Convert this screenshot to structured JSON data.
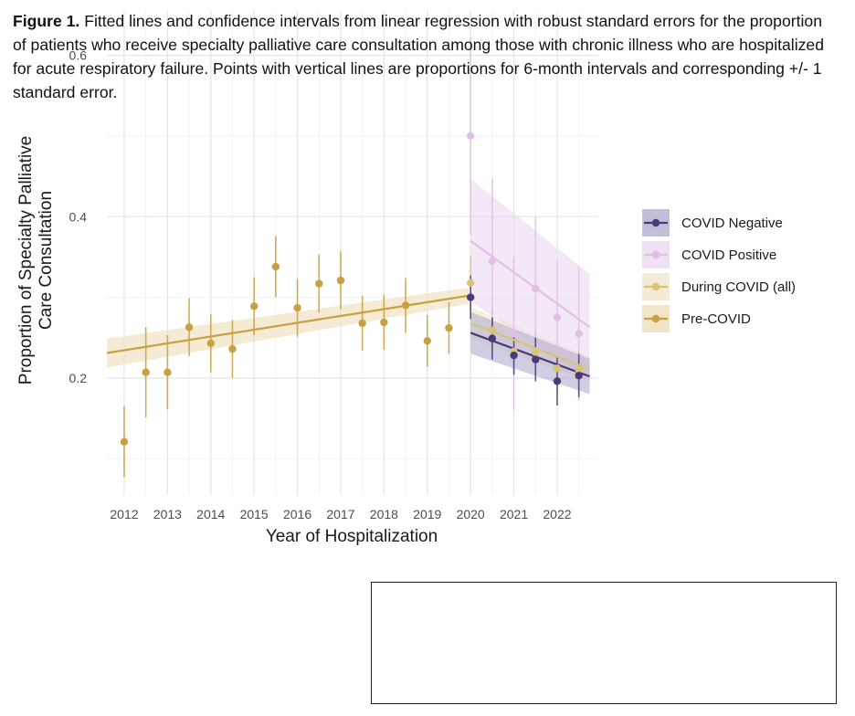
{
  "chart_data": {
    "type": "scatter",
    "xlabel": "Year of Hospitalization",
    "ylabel_line1": "Proportion of Specialty Palliative",
    "ylabel_line2": "Care Consultation",
    "x_tick_labels": [
      "2012",
      "2013",
      "2014",
      "2015",
      "2016",
      "2017",
      "2018",
      "2019",
      "2020",
      "2021",
      "2022"
    ],
    "y_tick_labels": [
      "0.2",
      "0.4",
      "0.6"
    ],
    "xlim": [
      2011.6,
      2022.95
    ],
    "ylim": [
      0.055,
      0.655
    ],
    "series": [
      {
        "name": "Pre-COVID",
        "color": "#c8a042",
        "points": [
          {
            "x": 2012.0,
            "y": 0.121,
            "lo": 0.077,
            "hi": 0.165
          },
          {
            "x": 2012.5,
            "y": 0.207,
            "lo": 0.151,
            "hi": 0.263
          },
          {
            "x": 2013.0,
            "y": 0.207,
            "lo": 0.161,
            "hi": 0.253
          },
          {
            "x": 2013.5,
            "y": 0.263,
            "lo": 0.227,
            "hi": 0.299
          },
          {
            "x": 2014.0,
            "y": 0.243,
            "lo": 0.207,
            "hi": 0.279
          },
          {
            "x": 2014.5,
            "y": 0.236,
            "lo": 0.2,
            "hi": 0.272
          },
          {
            "x": 2015.0,
            "y": 0.289,
            "lo": 0.253,
            "hi": 0.325
          },
          {
            "x": 2015.5,
            "y": 0.338,
            "lo": 0.3,
            "hi": 0.376
          },
          {
            "x": 2016.0,
            "y": 0.287,
            "lo": 0.251,
            "hi": 0.323
          },
          {
            "x": 2016.5,
            "y": 0.317,
            "lo": 0.281,
            "hi": 0.353
          },
          {
            "x": 2017.0,
            "y": 0.321,
            "lo": 0.285,
            "hi": 0.357
          },
          {
            "x": 2017.5,
            "y": 0.268,
            "lo": 0.234,
            "hi": 0.302
          },
          {
            "x": 2018.0,
            "y": 0.269,
            "lo": 0.235,
            "hi": 0.303
          },
          {
            "x": 2018.5,
            "y": 0.29,
            "lo": 0.256,
            "hi": 0.324
          },
          {
            "x": 2019.0,
            "y": 0.246,
            "lo": 0.214,
            "hi": 0.278
          },
          {
            "x": 2019.5,
            "y": 0.262,
            "lo": 0.23,
            "hi": 0.294
          }
        ],
        "fit": {
          "x": [
            2011.6,
            2019.95
          ],
          "y": [
            0.231,
            0.302
          ],
          "ci_lo": [
            0.213,
            0.292
          ],
          "ci_hi": [
            0.249,
            0.312
          ]
        }
      },
      {
        "name": "During COVID (all)",
        "color": "#d8c378",
        "points": [
          {
            "x": 2020.0,
            "y": 0.318,
            "lo": 0.285,
            "hi": 0.351
          },
          {
            "x": 2020.5,
            "y": 0.259,
            "lo": 0.232,
            "hi": 0.286
          },
          {
            "x": 2021.0,
            "y": 0.233,
            "lo": 0.208,
            "hi": 0.258
          },
          {
            "x": 2021.5,
            "y": 0.232,
            "lo": 0.205,
            "hi": 0.259
          },
          {
            "x": 2022.0,
            "y": 0.212,
            "lo": 0.186,
            "hi": 0.238
          },
          {
            "x": 2022.5,
            "y": 0.21,
            "lo": 0.186,
            "hi": 0.234
          }
        ],
        "fit": {
          "x": [
            2020.0,
            2022.75
          ],
          "y": [
            0.268,
            0.211
          ],
          "ci_lo": [
            0.248,
            0.196
          ],
          "ci_hi": [
            0.288,
            0.226
          ]
        }
      },
      {
        "name": "COVID Positive",
        "color": "#e2bfe6",
        "points": [
          {
            "x": 2020.0,
            "y": 0.5,
            "lo": 0.378,
            "hi": 0.622
          },
          {
            "x": 2020.5,
            "y": 0.345,
            "lo": 0.243,
            "hi": 0.447
          },
          {
            "x": 2021.0,
            "y": 0.255,
            "lo": 0.16,
            "hi": 0.35
          },
          {
            "x": 2021.5,
            "y": 0.311,
            "lo": 0.222,
            "hi": 0.4
          },
          {
            "x": 2022.0,
            "y": 0.275,
            "lo": 0.206,
            "hi": 0.344
          },
          {
            "x": 2022.5,
            "y": 0.255,
            "lo": 0.172,
            "hi": 0.338
          }
        ],
        "fit": {
          "x": [
            2020.0,
            2022.75
          ],
          "y": [
            0.37,
            0.263
          ],
          "ci_lo": [
            0.295,
            0.197
          ],
          "ci_hi": [
            0.447,
            0.329
          ]
        }
      },
      {
        "name": "COVID Negative",
        "color": "#4a3a78",
        "points": [
          {
            "x": 2020.0,
            "y": 0.3,
            "lo": 0.273,
            "hi": 0.327
          },
          {
            "x": 2020.5,
            "y": 0.249,
            "lo": 0.223,
            "hi": 0.275
          },
          {
            "x": 2021.0,
            "y": 0.228,
            "lo": 0.204,
            "hi": 0.252
          },
          {
            "x": 2021.5,
            "y": 0.223,
            "lo": 0.196,
            "hi": 0.25
          },
          {
            "x": 2022.0,
            "y": 0.196,
            "lo": 0.166,
            "hi": 0.226
          },
          {
            "x": 2022.5,
            "y": 0.203,
            "lo": 0.176,
            "hi": 0.23
          }
        ],
        "fit": {
          "x": [
            2020.0,
            2022.75
          ],
          "y": [
            0.256,
            0.202
          ],
          "ci_lo": [
            0.23,
            0.18
          ],
          "ci_hi": [
            0.282,
            0.224
          ]
        }
      }
    ],
    "legend": {
      "position": "right",
      "entries": [
        {
          "label": "COVID Negative",
          "color": "#4a3a78",
          "band": "#b8b2d2"
        },
        {
          "label": "COVID Positive",
          "color": "#e2bfe6",
          "band": "#ecdcf0"
        },
        {
          "label": "During COVID (all)",
          "color": "#d8c378",
          "band": "#f1e9cc"
        },
        {
          "label": "Pre-COVID",
          "color": "#c8a042",
          "band": "#efe0bd"
        }
      ]
    }
  },
  "caption": {
    "label": "Figure 1.",
    "text": " Fitted lines and confidence intervals from linear regression with robust standard errors for the proportion of patients who receive specialty palliative care consultation among those with chronic illness who are hospitalized for acute respiratory failure. Points with vertical lines are proportions for 6-month intervals and corresponding +/- 1 standard error."
  }
}
